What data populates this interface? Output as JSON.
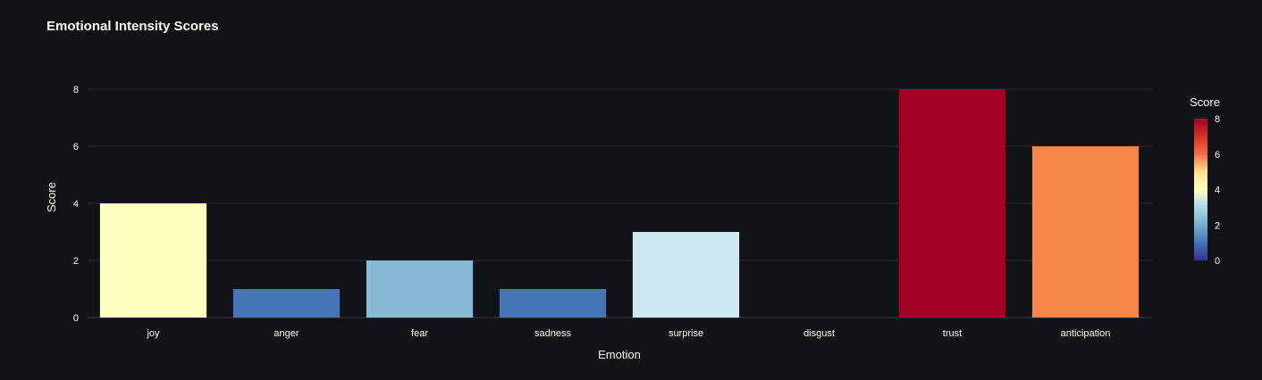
{
  "chart_data": {
    "type": "bar",
    "title": "Emotional Intensity Scores",
    "xlabel": "Emotion",
    "ylabel": "Score",
    "categories": [
      "joy",
      "anger",
      "fear",
      "sadness",
      "surprise",
      "disgust",
      "trust",
      "anticipation"
    ],
    "values": [
      4,
      1,
      2,
      1,
      3,
      0,
      8,
      6
    ],
    "ylim": [
      0,
      8
    ],
    "yticks": [
      "0",
      "2",
      "4",
      "6",
      "8"
    ],
    "grid": true,
    "colorscale": "RdYlBu reversed",
    "colorbar": {
      "title": "Score",
      "range": [
        0,
        8
      ],
      "ticks": [
        "0",
        "2",
        "4",
        "6",
        "8"
      ],
      "placement": "right"
    },
    "bar_colors": [
      "#ffffbf",
      "#4575b4",
      "#87bad9",
      "#4575b4",
      "#cde9f2",
      "#313695",
      "#a50026",
      "#f6854a"
    ],
    "colors": {
      "background": "#111318",
      "grid": "#2b2e36",
      "text": "#fafafa"
    }
  }
}
